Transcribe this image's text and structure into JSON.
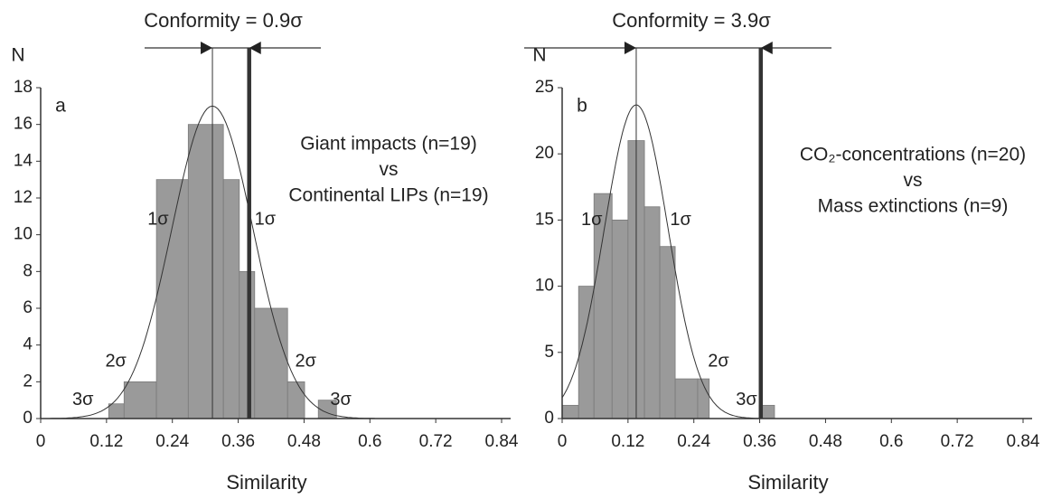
{
  "chart_data": [
    {
      "type": "histogram",
      "title": "Conformity = 0.9σ",
      "panel_label": "a",
      "x_label": "Similarity",
      "y_label": "N",
      "legend_lines": [
        "Giant impacts (n=19)",
        "vs",
        "Continental LIPs (n=19)"
      ],
      "bins": [
        0.124,
        0.152,
        0.211,
        0.269,
        0.333,
        0.362,
        0.39,
        0.45,
        0.481,
        0.506,
        0.539
      ],
      "counts": [
        0.8,
        2,
        13,
        16,
        13,
        8,
        6,
        2,
        0,
        1
      ],
      "color": "#9a9a9a",
      "curve": {
        "mean": 0.313,
        "sd": 0.074,
        "peak": 17
      },
      "conformity_line": 0.38,
      "annotations": [
        {
          "text": "3σ",
          "x": 0.077,
          "y": 0.8
        },
        {
          "text": "2σ",
          "x": 0.137,
          "y": 2.9
        },
        {
          "text": "1σ",
          "x": 0.214,
          "y": 10.6
        },
        {
          "text": "1σ",
          "x": 0.409,
          "y": 10.6
        },
        {
          "text": "2σ",
          "x": 0.483,
          "y": 2.9
        },
        {
          "text": "3σ",
          "x": 0.547,
          "y": 0.8
        }
      ],
      "xlim": [
        0,
        0.84
      ],
      "xticks": [
        0,
        0.12,
        0.24,
        0.36,
        0.48,
        0.6,
        0.72,
        0.84
      ],
      "ylim": [
        0,
        18
      ],
      "yticks": [
        0,
        2,
        4,
        6,
        8,
        10,
        12,
        14,
        16,
        18
      ]
    },
    {
      "type": "histogram",
      "title": "Conformity = 3.9σ",
      "panel_label": "b",
      "x_label": "Similarity",
      "y_label": "N",
      "legend_lines": [
        "CO₂-concentrations (n=20)",
        "vs",
        "Mass extinctions (n=9)"
      ],
      "bins": [
        0,
        0.03,
        0.058,
        0.091,
        0.12,
        0.15,
        0.178,
        0.206,
        0.247,
        0.268,
        0.359,
        0.387
      ],
      "counts": [
        1,
        10,
        17,
        15,
        21,
        16,
        13,
        3,
        3,
        0,
        1
      ],
      "color": "#9a9a9a",
      "curve": {
        "mean": 0.135,
        "sd": 0.058,
        "peak": 23.7
      },
      "conformity_line": 0.362,
      "annotations": [
        {
          "text": "1σ",
          "x": 0.054,
          "y": 14.7
        },
        {
          "text": "1σ",
          "x": 0.216,
          "y": 14.7
        },
        {
          "text": "2σ",
          "x": 0.285,
          "y": 4
        },
        {
          "text": "3σ",
          "x": 0.336,
          "y": 1.1
        }
      ],
      "xlim": [
        0,
        0.84
      ],
      "xticks": [
        0,
        0.12,
        0.24,
        0.36,
        0.48,
        0.6,
        0.72,
        0.84
      ],
      "ylim": [
        0,
        25
      ],
      "yticks": [
        0,
        5,
        10,
        15,
        20,
        25
      ]
    }
  ]
}
